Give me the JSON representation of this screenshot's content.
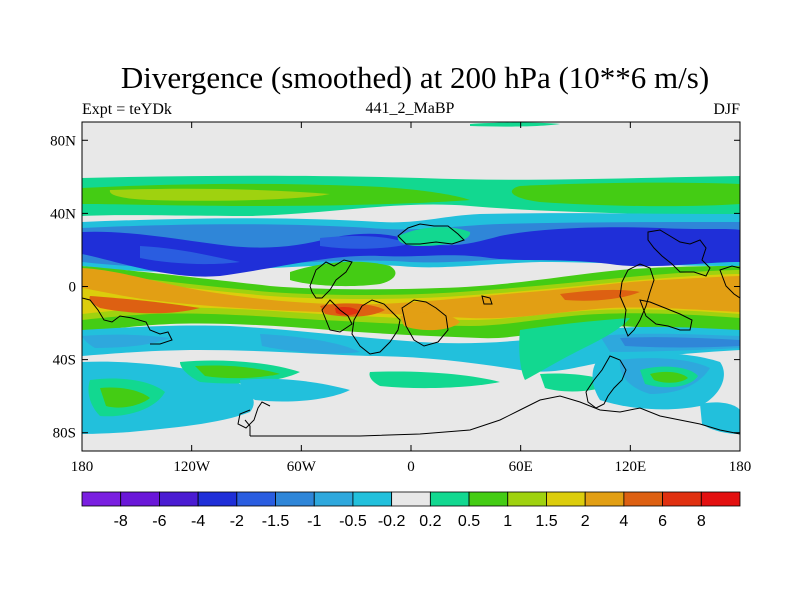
{
  "title": "Divergence (smoothed) at 200 hPa (10**6 m/s)",
  "left_label": "Expt = teYDk",
  "center_label": "441_2_MaBP",
  "right_label": "DJF",
  "chart_data": {
    "type": "filled-contour-map",
    "variable": "Divergence (smoothed)",
    "level": "200 hPa",
    "units": "10**6 m/s",
    "experiment": "teYDk",
    "season": "DJF",
    "run": "441_2_MaBP",
    "x_axis": {
      "range": [
        -180,
        180
      ],
      "ticks": [
        -180,
        -120,
        -60,
        0,
        60,
        120,
        180
      ],
      "tick_labels": [
        "180",
        "120W",
        "60W",
        "0",
        "60E",
        "120E",
        "180"
      ]
    },
    "y_axis": {
      "range": [
        -90,
        90
      ],
      "ticks": [
        80,
        40,
        0,
        -40,
        -80
      ],
      "tick_labels": [
        "80N",
        "40N",
        "0",
        "40S",
        "80S"
      ]
    },
    "colorbar": {
      "levels": [
        "-8",
        "-6",
        "-4",
        "-2",
        "-1.5",
        "-1",
        "-0.5",
        "-0.2",
        "0.2",
        "0.5",
        "1",
        "1.5",
        "2",
        "4",
        "6",
        "8"
      ],
      "colors": [
        "#7a1fe0",
        "#6a17d8",
        "#4a1bd2",
        "#1f2fd8",
        "#2a5de0",
        "#2f86d8",
        "#2ea8dd",
        "#22c0dc",
        "#e8e8e8",
        "#12d890",
        "#44cc14",
        "#9fd20f",
        "#dccd0c",
        "#e29f14",
        "#dd6012",
        "#e03010",
        "#e31010"
      ]
    },
    "features": [
      {
        "region": "northern subtropical band ~20N-35N",
        "sign": "convergence",
        "peak_category": "-4 to -2"
      },
      {
        "region": "mid-latitude band ~45N-60N",
        "sign": "divergence",
        "peak_category": "0.5 to 1.5"
      },
      {
        "region": "tropical belt ~5S-20S",
        "sign": "divergence",
        "peak_category": "2 to 6"
      },
      {
        "region": "southern band ~30S-45S",
        "sign": "convergence",
        "peak_category": "-1 to -0.2"
      },
      {
        "region": "southern mid-latitudes ~50S-60S",
        "sign": "mixed",
        "peak_category": "-1 to 1.5"
      }
    ]
  }
}
